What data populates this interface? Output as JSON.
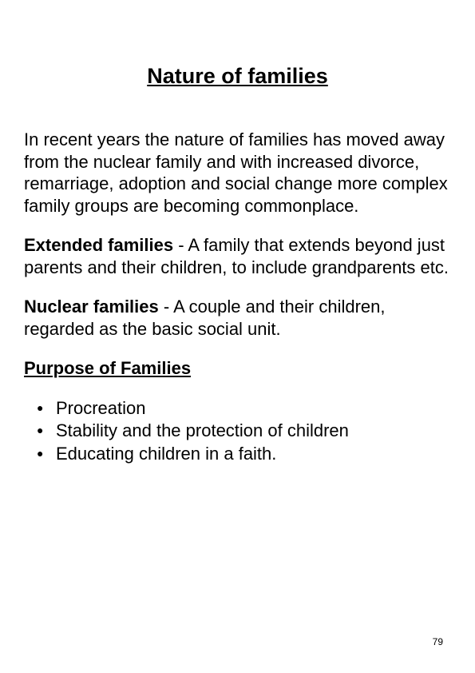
{
  "title": "Nature of families",
  "intro": "In recent years the nature of families has moved away from the nuclear family and with increased divorce, remarriage, adoption and social change more complex family groups are becoming commonplace.",
  "definitions": [
    {
      "term": "Extended families",
      "text": " - A family that extends beyond just parents and their children, to include grandparents etc."
    },
    {
      "term": "Nuclear families",
      "text": " - A couple and their children, regarded as the basic social unit."
    }
  ],
  "purpose_heading": "Purpose of Families",
  "bullets": [
    "Procreation",
    "Stability and the protection of children",
    "Educating children in a faith."
  ],
  "page_number": "79",
  "colors": {
    "background": "#ffffff",
    "text": "#000000"
  },
  "typography": {
    "title_fontsize": 27,
    "body_fontsize": 22,
    "page_number_fontsize": 12,
    "font_family": "Arial"
  }
}
